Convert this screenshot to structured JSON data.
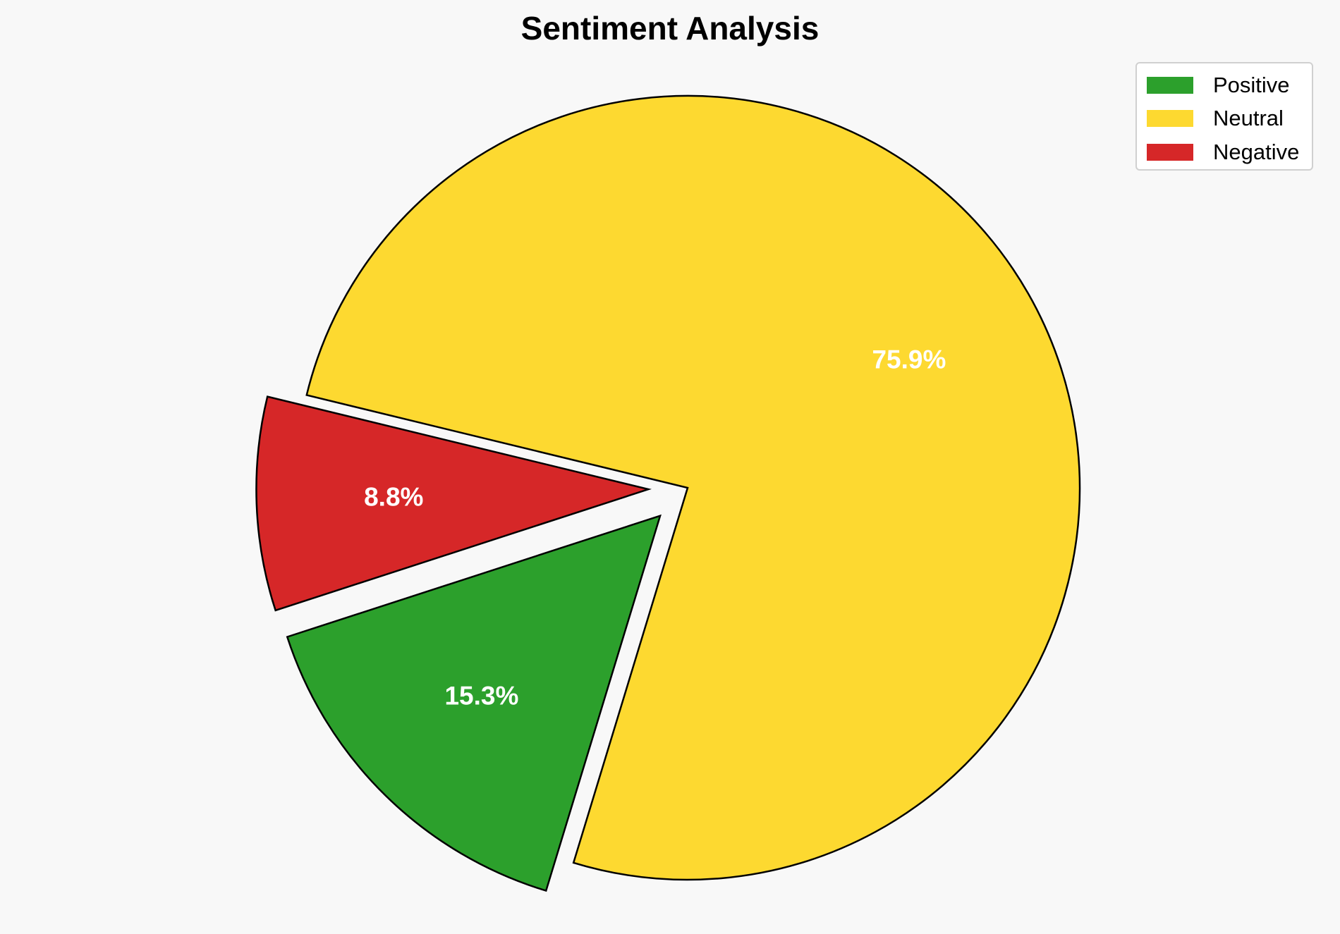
{
  "chart_data": {
    "type": "pie",
    "title": "Sentiment Analysis",
    "categories": [
      "Positive",
      "Neutral",
      "Negative"
    ],
    "values": [
      15.3,
      75.9,
      8.8
    ],
    "value_labels": [
      "15.3%",
      "75.9%",
      "8.8%"
    ],
    "colors": [
      "#2ca02c",
      "#fdd930",
      "#d62728"
    ],
    "exploded": [
      true,
      false,
      true
    ],
    "legend_position": "top-right",
    "grid": false
  }
}
